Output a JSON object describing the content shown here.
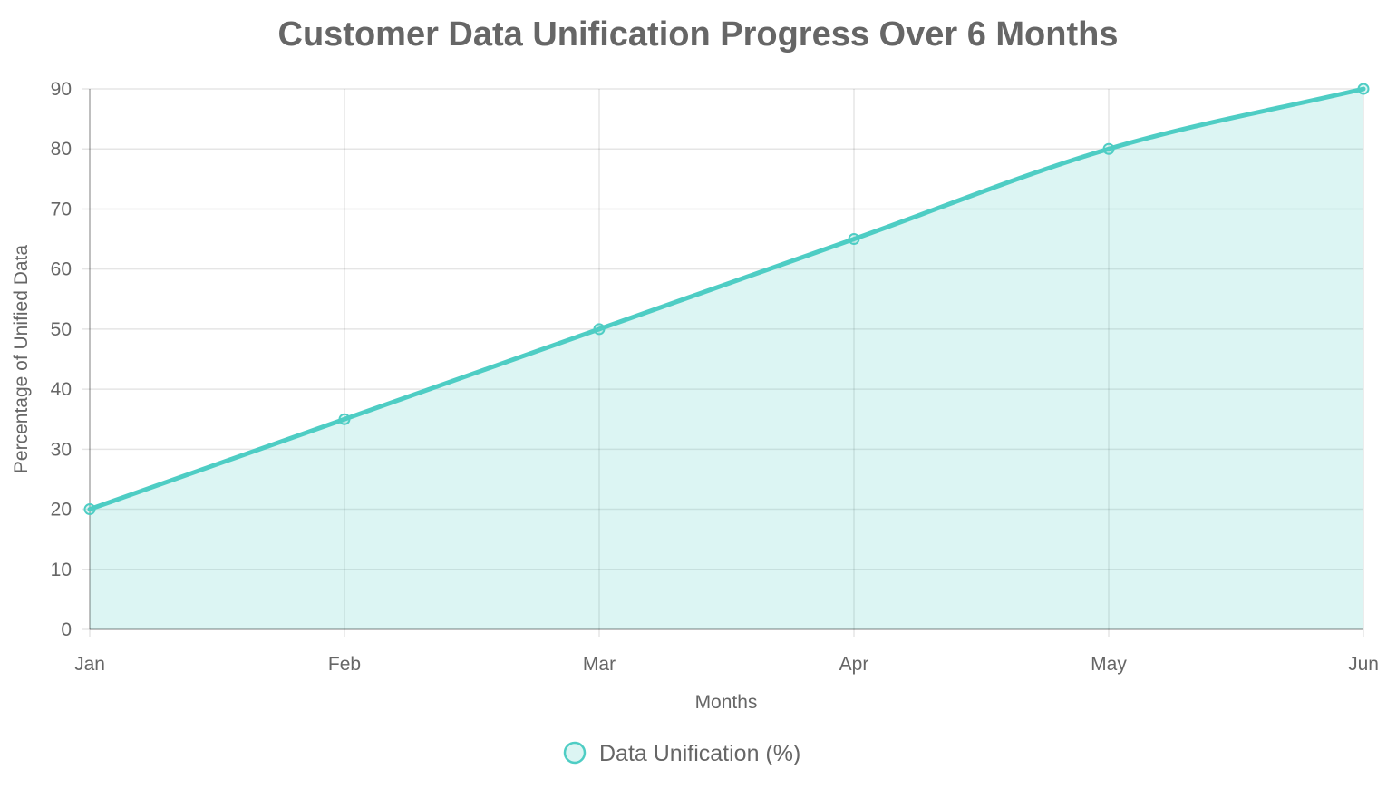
{
  "chart_data": {
    "type": "area",
    "title": "Customer Data Unification Progress Over 6 Months",
    "xlabel": "Months",
    "ylabel": "Percentage of Unified Data",
    "categories": [
      "Jan",
      "Feb",
      "Mar",
      "Apr",
      "May",
      "Jun"
    ],
    "series": [
      {
        "name": "Data Unification (%)",
        "values": [
          20,
          35,
          50,
          65,
          80,
          90
        ],
        "color": "#4ecdc4",
        "fill_color": "rgba(78, 205, 196, 0.2)"
      }
    ],
    "ylim": [
      0,
      90
    ],
    "yticks": [
      0,
      10,
      20,
      30,
      40,
      50,
      60,
      70,
      80,
      90
    ],
    "grid": true,
    "legend_position": "bottom",
    "line_smoothing": true
  }
}
